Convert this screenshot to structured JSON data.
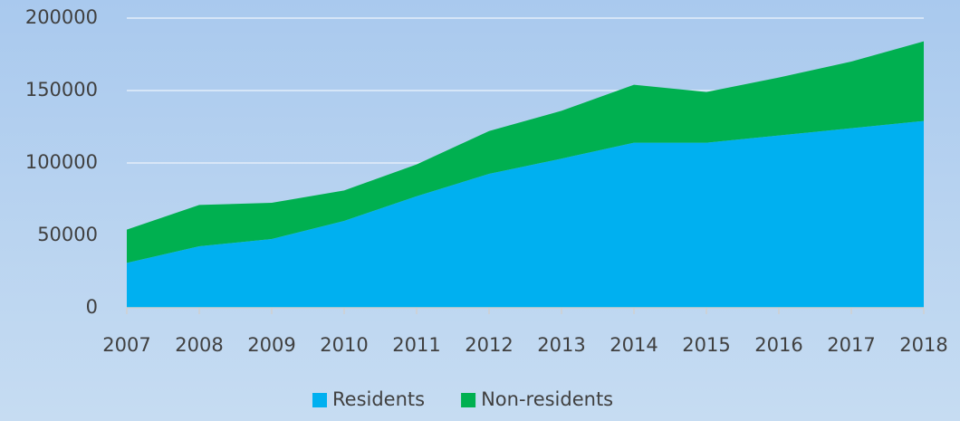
{
  "chart_data": {
    "type": "stacked_area",
    "categories": [
      "2007",
      "2008",
      "2009",
      "2010",
      "2011",
      "2012",
      "2013",
      "2014",
      "2015",
      "2016",
      "2017",
      "2018"
    ],
    "series": [
      {
        "name": "Residents",
        "color": "#00b0f0",
        "values": [
          31000,
          42500,
          47500,
          60000,
          77000,
          92500,
          103000,
          114000,
          114000,
          119000,
          124000,
          129000
        ]
      },
      {
        "name": "Non-residents",
        "color": "#00b050",
        "values": [
          23000,
          28500,
          25000,
          21000,
          22000,
          29500,
          33000,
          40000,
          35000,
          40000,
          46000,
          55000
        ]
      }
    ],
    "ylim": [
      0,
      200000
    ],
    "yticks": [
      0,
      50000,
      100000,
      150000,
      200000
    ],
    "grid": true,
    "legend": "bottom"
  }
}
